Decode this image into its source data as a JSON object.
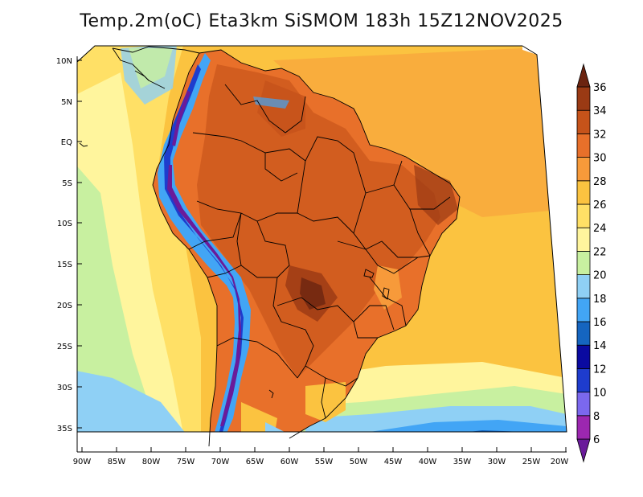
{
  "title": "Temp.2m(oC) Eta3km SiSMOM 183h 15Z12NOV2025",
  "lat_labels": [
    "10N",
    "5N",
    "EQ",
    "5S",
    "10S",
    "15S",
    "20S",
    "25S",
    "30S",
    "35S"
  ],
  "lon_labels": [
    "90W",
    "85W",
    "80W",
    "75W",
    "70W",
    "65W",
    "60W",
    "55W",
    "50W",
    "45W",
    "40W",
    "35W",
    "30W",
    "25W",
    "20W"
  ],
  "colorbar": {
    "labels": [
      "6",
      "8",
      "10",
      "12",
      "14",
      "16",
      "18",
      "20",
      "22",
      "24",
      "26",
      "28",
      "30",
      "32",
      "34",
      "36"
    ],
    "colors": [
      "#6a1b9a",
      "#9c27b0",
      "#7b68ee",
      "#1e3ccd",
      "#0a0aa0",
      "#1565c0",
      "#42a5f5",
      "#8fd0f5",
      "#c8f0a0",
      "#fff59d",
      "#ffe066",
      "#fbc340",
      "#f79a3a",
      "#e8702a",
      "#c6531a",
      "#9a3a14",
      "#6b2410"
    ]
  },
  "colors": {
    "ocean_warm": "#fbc340",
    "ocean_mid": "#ffe066",
    "ocean_cool": "#fff59d",
    "ocean_cold": "#8fd0f5",
    "land_hot": "#e8702a",
    "land_hotter": "#c6531a",
    "land_hottest": "#7a3216",
    "andes_cold": "#1e3ccd",
    "andes_coldest": "#6a1b9a"
  }
}
